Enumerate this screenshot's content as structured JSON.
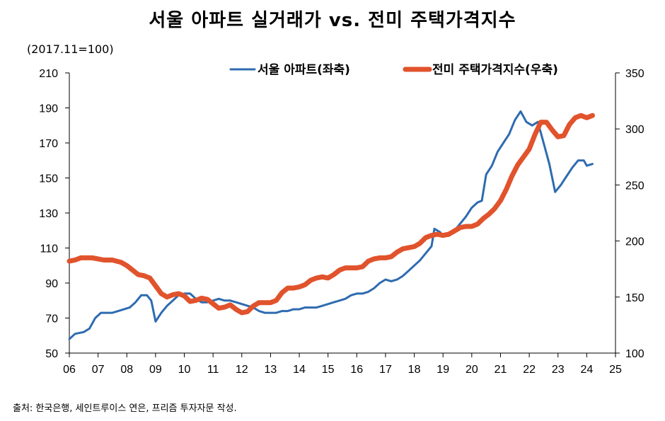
{
  "chart_data": {
    "type": "line",
    "title": "서울 아파트 실거래가 vs. 전미 주택가격지수",
    "unit_note": "(2017.11=100)",
    "source": "출처: 한국은행, 세인트루이스 연은, 프리즘 투자자문 작성.",
    "x_ticks": [
      "06",
      "07",
      "08",
      "09",
      "10",
      "11",
      "12",
      "13",
      "14",
      "15",
      "16",
      "17",
      "18",
      "19",
      "20",
      "21",
      "22",
      "23",
      "24",
      "25"
    ],
    "x_range": [
      2006,
      2025
    ],
    "left_axis": {
      "range": [
        50,
        210
      ],
      "ticks": [
        50,
        70,
        90,
        110,
        130,
        150,
        170,
        190,
        210
      ]
    },
    "right_axis": {
      "range": [
        100,
        350
      ],
      "ticks": [
        100,
        150,
        200,
        250,
        300,
        350
      ]
    },
    "series": [
      {
        "name": "서울 아파트(좌축)",
        "axis": "left",
        "color": "#2e6bb0",
        "points": [
          [
            2006.0,
            58
          ],
          [
            2006.2,
            61
          ],
          [
            2006.5,
            62
          ],
          [
            2006.7,
            64
          ],
          [
            2006.9,
            70
          ],
          [
            2007.1,
            73
          ],
          [
            2007.3,
            73
          ],
          [
            2007.5,
            73
          ],
          [
            2007.7,
            74
          ],
          [
            2007.9,
            75
          ],
          [
            2008.1,
            76
          ],
          [
            2008.3,
            79
          ],
          [
            2008.5,
            83
          ],
          [
            2008.7,
            83
          ],
          [
            2008.85,
            80
          ],
          [
            2008.95,
            72
          ],
          [
            2009.0,
            68
          ],
          [
            2009.2,
            73
          ],
          [
            2009.4,
            77
          ],
          [
            2009.6,
            80
          ],
          [
            2009.8,
            83
          ],
          [
            2010.0,
            84
          ],
          [
            2010.2,
            84
          ],
          [
            2010.4,
            81
          ],
          [
            2010.6,
            79
          ],
          [
            2010.8,
            79
          ],
          [
            2011.0,
            80
          ],
          [
            2011.2,
            81
          ],
          [
            2011.4,
            80
          ],
          [
            2011.6,
            80
          ],
          [
            2011.8,
            79
          ],
          [
            2012.0,
            78
          ],
          [
            2012.2,
            77
          ],
          [
            2012.4,
            76
          ],
          [
            2012.6,
            74
          ],
          [
            2012.8,
            73
          ],
          [
            2013.0,
            73
          ],
          [
            2013.2,
            73
          ],
          [
            2013.4,
            74
          ],
          [
            2013.6,
            74
          ],
          [
            2013.8,
            75
          ],
          [
            2014.0,
            75
          ],
          [
            2014.2,
            76
          ],
          [
            2014.4,
            76
          ],
          [
            2014.6,
            76
          ],
          [
            2014.8,
            77
          ],
          [
            2015.0,
            78
          ],
          [
            2015.2,
            79
          ],
          [
            2015.4,
            80
          ],
          [
            2015.6,
            81
          ],
          [
            2015.8,
            83
          ],
          [
            2016.0,
            84
          ],
          [
            2016.2,
            84
          ],
          [
            2016.4,
            85
          ],
          [
            2016.6,
            87
          ],
          [
            2016.8,
            90
          ],
          [
            2017.0,
            92
          ],
          [
            2017.2,
            91
          ],
          [
            2017.4,
            92
          ],
          [
            2017.6,
            94
          ],
          [
            2017.8,
            97
          ],
          [
            2018.0,
            100
          ],
          [
            2018.2,
            103
          ],
          [
            2018.4,
            107
          ],
          [
            2018.6,
            111
          ],
          [
            2018.7,
            121
          ],
          [
            2018.9,
            119
          ],
          [
            2019.0,
            117
          ],
          [
            2019.2,
            117
          ],
          [
            2019.4,
            120
          ],
          [
            2019.6,
            124
          ],
          [
            2019.8,
            128
          ],
          [
            2020.0,
            133
          ],
          [
            2020.2,
            136
          ],
          [
            2020.35,
            137
          ],
          [
            2020.5,
            152
          ],
          [
            2020.7,
            157
          ],
          [
            2020.9,
            165
          ],
          [
            2021.1,
            170
          ],
          [
            2021.3,
            175
          ],
          [
            2021.5,
            183
          ],
          [
            2021.7,
            188
          ],
          [
            2021.9,
            182
          ],
          [
            2022.1,
            180
          ],
          [
            2022.3,
            182
          ],
          [
            2022.5,
            170
          ],
          [
            2022.7,
            158
          ],
          [
            2022.9,
            142
          ],
          [
            2023.1,
            146
          ],
          [
            2023.3,
            151
          ],
          [
            2023.5,
            156
          ],
          [
            2023.7,
            160
          ],
          [
            2023.9,
            160
          ],
          [
            2024.0,
            157
          ],
          [
            2024.2,
            158
          ]
        ]
      },
      {
        "name": "전미 주택가격지수(우축)",
        "axis": "right",
        "color": "#e1532c",
        "points": [
          [
            2006.0,
            182
          ],
          [
            2006.2,
            183
          ],
          [
            2006.4,
            185
          ],
          [
            2006.6,
            185
          ],
          [
            2006.8,
            185
          ],
          [
            2007.0,
            184
          ],
          [
            2007.2,
            183
          ],
          [
            2007.5,
            183
          ],
          [
            2007.8,
            181
          ],
          [
            2008.0,
            178
          ],
          [
            2008.2,
            174
          ],
          [
            2008.4,
            170
          ],
          [
            2008.6,
            169
          ],
          [
            2008.8,
            167
          ],
          [
            2009.0,
            160
          ],
          [
            2009.2,
            153
          ],
          [
            2009.4,
            150
          ],
          [
            2009.6,
            152
          ],
          [
            2009.8,
            153
          ],
          [
            2010.0,
            151
          ],
          [
            2010.2,
            146
          ],
          [
            2010.4,
            147
          ],
          [
            2010.6,
            149
          ],
          [
            2010.8,
            148
          ],
          [
            2011.0,
            144
          ],
          [
            2011.2,
            140
          ],
          [
            2011.4,
            141
          ],
          [
            2011.6,
            143
          ],
          [
            2011.8,
            139
          ],
          [
            2012.0,
            136
          ],
          [
            2012.2,
            137
          ],
          [
            2012.4,
            142
          ],
          [
            2012.6,
            145
          ],
          [
            2012.8,
            145
          ],
          [
            2013.0,
            145
          ],
          [
            2013.2,
            147
          ],
          [
            2013.4,
            154
          ],
          [
            2013.6,
            158
          ],
          [
            2013.8,
            158
          ],
          [
            2014.0,
            159
          ],
          [
            2014.2,
            161
          ],
          [
            2014.4,
            165
          ],
          [
            2014.6,
            167
          ],
          [
            2014.8,
            168
          ],
          [
            2015.0,
            167
          ],
          [
            2015.2,
            170
          ],
          [
            2015.4,
            174
          ],
          [
            2015.6,
            176
          ],
          [
            2015.8,
            176
          ],
          [
            2016.0,
            176
          ],
          [
            2016.2,
            177
          ],
          [
            2016.4,
            182
          ],
          [
            2016.6,
            184
          ],
          [
            2016.8,
            185
          ],
          [
            2017.0,
            185
          ],
          [
            2017.2,
            186
          ],
          [
            2017.4,
            190
          ],
          [
            2017.6,
            193
          ],
          [
            2017.8,
            194
          ],
          [
            2018.0,
            195
          ],
          [
            2018.2,
            198
          ],
          [
            2018.4,
            203
          ],
          [
            2018.6,
            205
          ],
          [
            2018.8,
            206
          ],
          [
            2019.0,
            205
          ],
          [
            2019.2,
            206
          ],
          [
            2019.4,
            209
          ],
          [
            2019.6,
            212
          ],
          [
            2019.8,
            213
          ],
          [
            2020.0,
            213
          ],
          [
            2020.2,
            215
          ],
          [
            2020.4,
            220
          ],
          [
            2020.6,
            224
          ],
          [
            2020.8,
            229
          ],
          [
            2021.0,
            236
          ],
          [
            2021.2,
            246
          ],
          [
            2021.4,
            258
          ],
          [
            2021.6,
            268
          ],
          [
            2021.8,
            275
          ],
          [
            2022.0,
            282
          ],
          [
            2022.2,
            295
          ],
          [
            2022.4,
            306
          ],
          [
            2022.6,
            306
          ],
          [
            2022.8,
            299
          ],
          [
            2023.0,
            293
          ],
          [
            2023.2,
            294
          ],
          [
            2023.4,
            304
          ],
          [
            2023.6,
            310
          ],
          [
            2023.8,
            312
          ],
          [
            2024.0,
            310
          ],
          [
            2024.2,
            312
          ]
        ]
      }
    ]
  }
}
